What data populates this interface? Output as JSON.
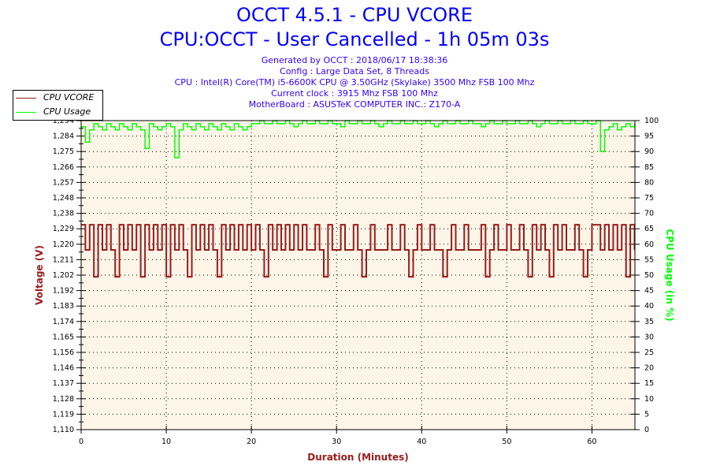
{
  "header": {
    "title": "OCCT 4.5.1 - CPU VCORE",
    "subtitle": "CPU:OCCT - User Cancelled - 1h 05m 03s",
    "info": [
      "Generated by OCCT : 2018/06/17 18:38:36",
      "Config : Large Data Set, 8 Threads",
      "CPU : Intel(R) Core(TM) i5-6600K CPU @ 3.50GHz (Skylake) 3500 Mhz FSB 100 Mhz",
      "Current clock : 3915 Mhz FSB 100 Mhz",
      "MotherBoard : ASUSTeK COMPUTER INC.: Z170-A"
    ]
  },
  "chart_data": {
    "type": "line",
    "title": "OCCT 4.5.1 - CPU VCORE",
    "xlabel": "Duration (Minutes)",
    "ylabel": "Voltage (V)",
    "y2label": "CPU Usage (in %)",
    "xlim": [
      0,
      65.05
    ],
    "ylim": [
      1.11,
      1.294
    ],
    "y2lim": [
      0,
      100
    ],
    "x_ticks": [
      "0",
      "10",
      "20",
      "30",
      "40",
      "50",
      "60"
    ],
    "y_ticks": [
      "1,110",
      "1,119",
      "1,128",
      "1,137",
      "1,146",
      "1,156",
      "1,165",
      "1,174",
      "1,183",
      "1,192",
      "1,202",
      "1,211",
      "1,220",
      "1,229",
      "1,238",
      "1,248",
      "1,257",
      "1,266",
      "1,275",
      "1,284",
      "1,294"
    ],
    "y2_ticks": [
      "0",
      "5",
      "10",
      "15",
      "20",
      "25",
      "30",
      "35",
      "40",
      "45",
      "50",
      "55",
      "60",
      "65",
      "70",
      "75",
      "80",
      "85",
      "90",
      "95",
      "100"
    ],
    "grid": true,
    "legend": "top-left",
    "colors": {
      "vcore": "#9b1b1b",
      "usage": "#00ff00",
      "plot_bg": "#fdf6e8"
    },
    "x_step_minutes": 0.5,
    "series": [
      {
        "name": "CPU VCORE",
        "axis": "left",
        "values": [
          1.232,
          1.217,
          1.232,
          1.201,
          1.232,
          1.217,
          1.232,
          1.217,
          1.201,
          1.232,
          1.217,
          1.232,
          1.217,
          1.232,
          1.201,
          1.232,
          1.217,
          1.232,
          1.217,
          1.232,
          1.201,
          1.232,
          1.217,
          1.232,
          1.217,
          1.201,
          1.232,
          1.217,
          1.232,
          1.217,
          1.232,
          1.217,
          1.201,
          1.232,
          1.217,
          1.232,
          1.217,
          1.232,
          1.217,
          1.232,
          1.217,
          1.232,
          1.217,
          1.201,
          1.232,
          1.217,
          1.232,
          1.217,
          1.232,
          1.217,
          1.232,
          1.217,
          1.232,
          1.217,
          1.217,
          1.232,
          1.217,
          1.201,
          1.232,
          1.217,
          1.217,
          1.232,
          1.217,
          1.217,
          1.232,
          1.217,
          1.201,
          1.217,
          1.232,
          1.217,
          1.217,
          1.217,
          1.232,
          1.217,
          1.217,
          1.232,
          1.217,
          1.201,
          1.217,
          1.232,
          1.217,
          1.217,
          1.232,
          1.217,
          1.217,
          1.201,
          1.217,
          1.232,
          1.217,
          1.217,
          1.232,
          1.217,
          1.217,
          1.217,
          1.232,
          1.201,
          1.217,
          1.232,
          1.217,
          1.217,
          1.232,
          1.217,
          1.217,
          1.232,
          1.217,
          1.201,
          1.232,
          1.217,
          1.232,
          1.217,
          1.201,
          1.232,
          1.217,
          1.232,
          1.217,
          1.217,
          1.232,
          1.217,
          1.201,
          1.217,
          1.232,
          1.232,
          1.217,
          1.232,
          1.217,
          1.232,
          1.217,
          1.232,
          1.201,
          1.232,
          1.217
        ]
      },
      {
        "name": "CPU Usage",
        "axis": "right",
        "values": [
          98,
          93,
          97,
          99,
          98,
          97,
          99,
          98,
          97,
          99,
          98,
          97,
          99,
          98,
          97,
          91,
          99,
          98,
          97,
          98,
          99,
          98,
          88,
          97,
          99,
          98,
          97,
          99,
          98,
          97,
          99,
          98,
          97,
          99,
          98,
          97,
          99,
          98,
          97,
          98,
          99,
          99,
          100,
          99,
          99,
          100,
          99,
          99,
          100,
          99,
          98,
          99,
          100,
          99,
          99,
          100,
          99,
          99,
          100,
          99,
          99,
          98,
          100,
          99,
          99,
          100,
          99,
          99,
          100,
          99,
          98,
          99,
          100,
          99,
          99,
          100,
          99,
          99,
          100,
          99,
          99,
          100,
          99,
          98,
          99,
          100,
          99,
          99,
          100,
          99,
          99,
          100,
          99,
          99,
          98,
          99,
          100,
          99,
          99,
          100,
          99,
          99,
          100,
          99,
          99,
          100,
          99,
          98,
          99,
          100,
          99,
          99,
          100,
          99,
          99,
          100,
          99,
          99,
          100,
          99,
          99,
          100,
          90,
          97,
          98,
          99,
          97,
          98,
          99,
          98,
          99
        ]
      }
    ]
  }
}
